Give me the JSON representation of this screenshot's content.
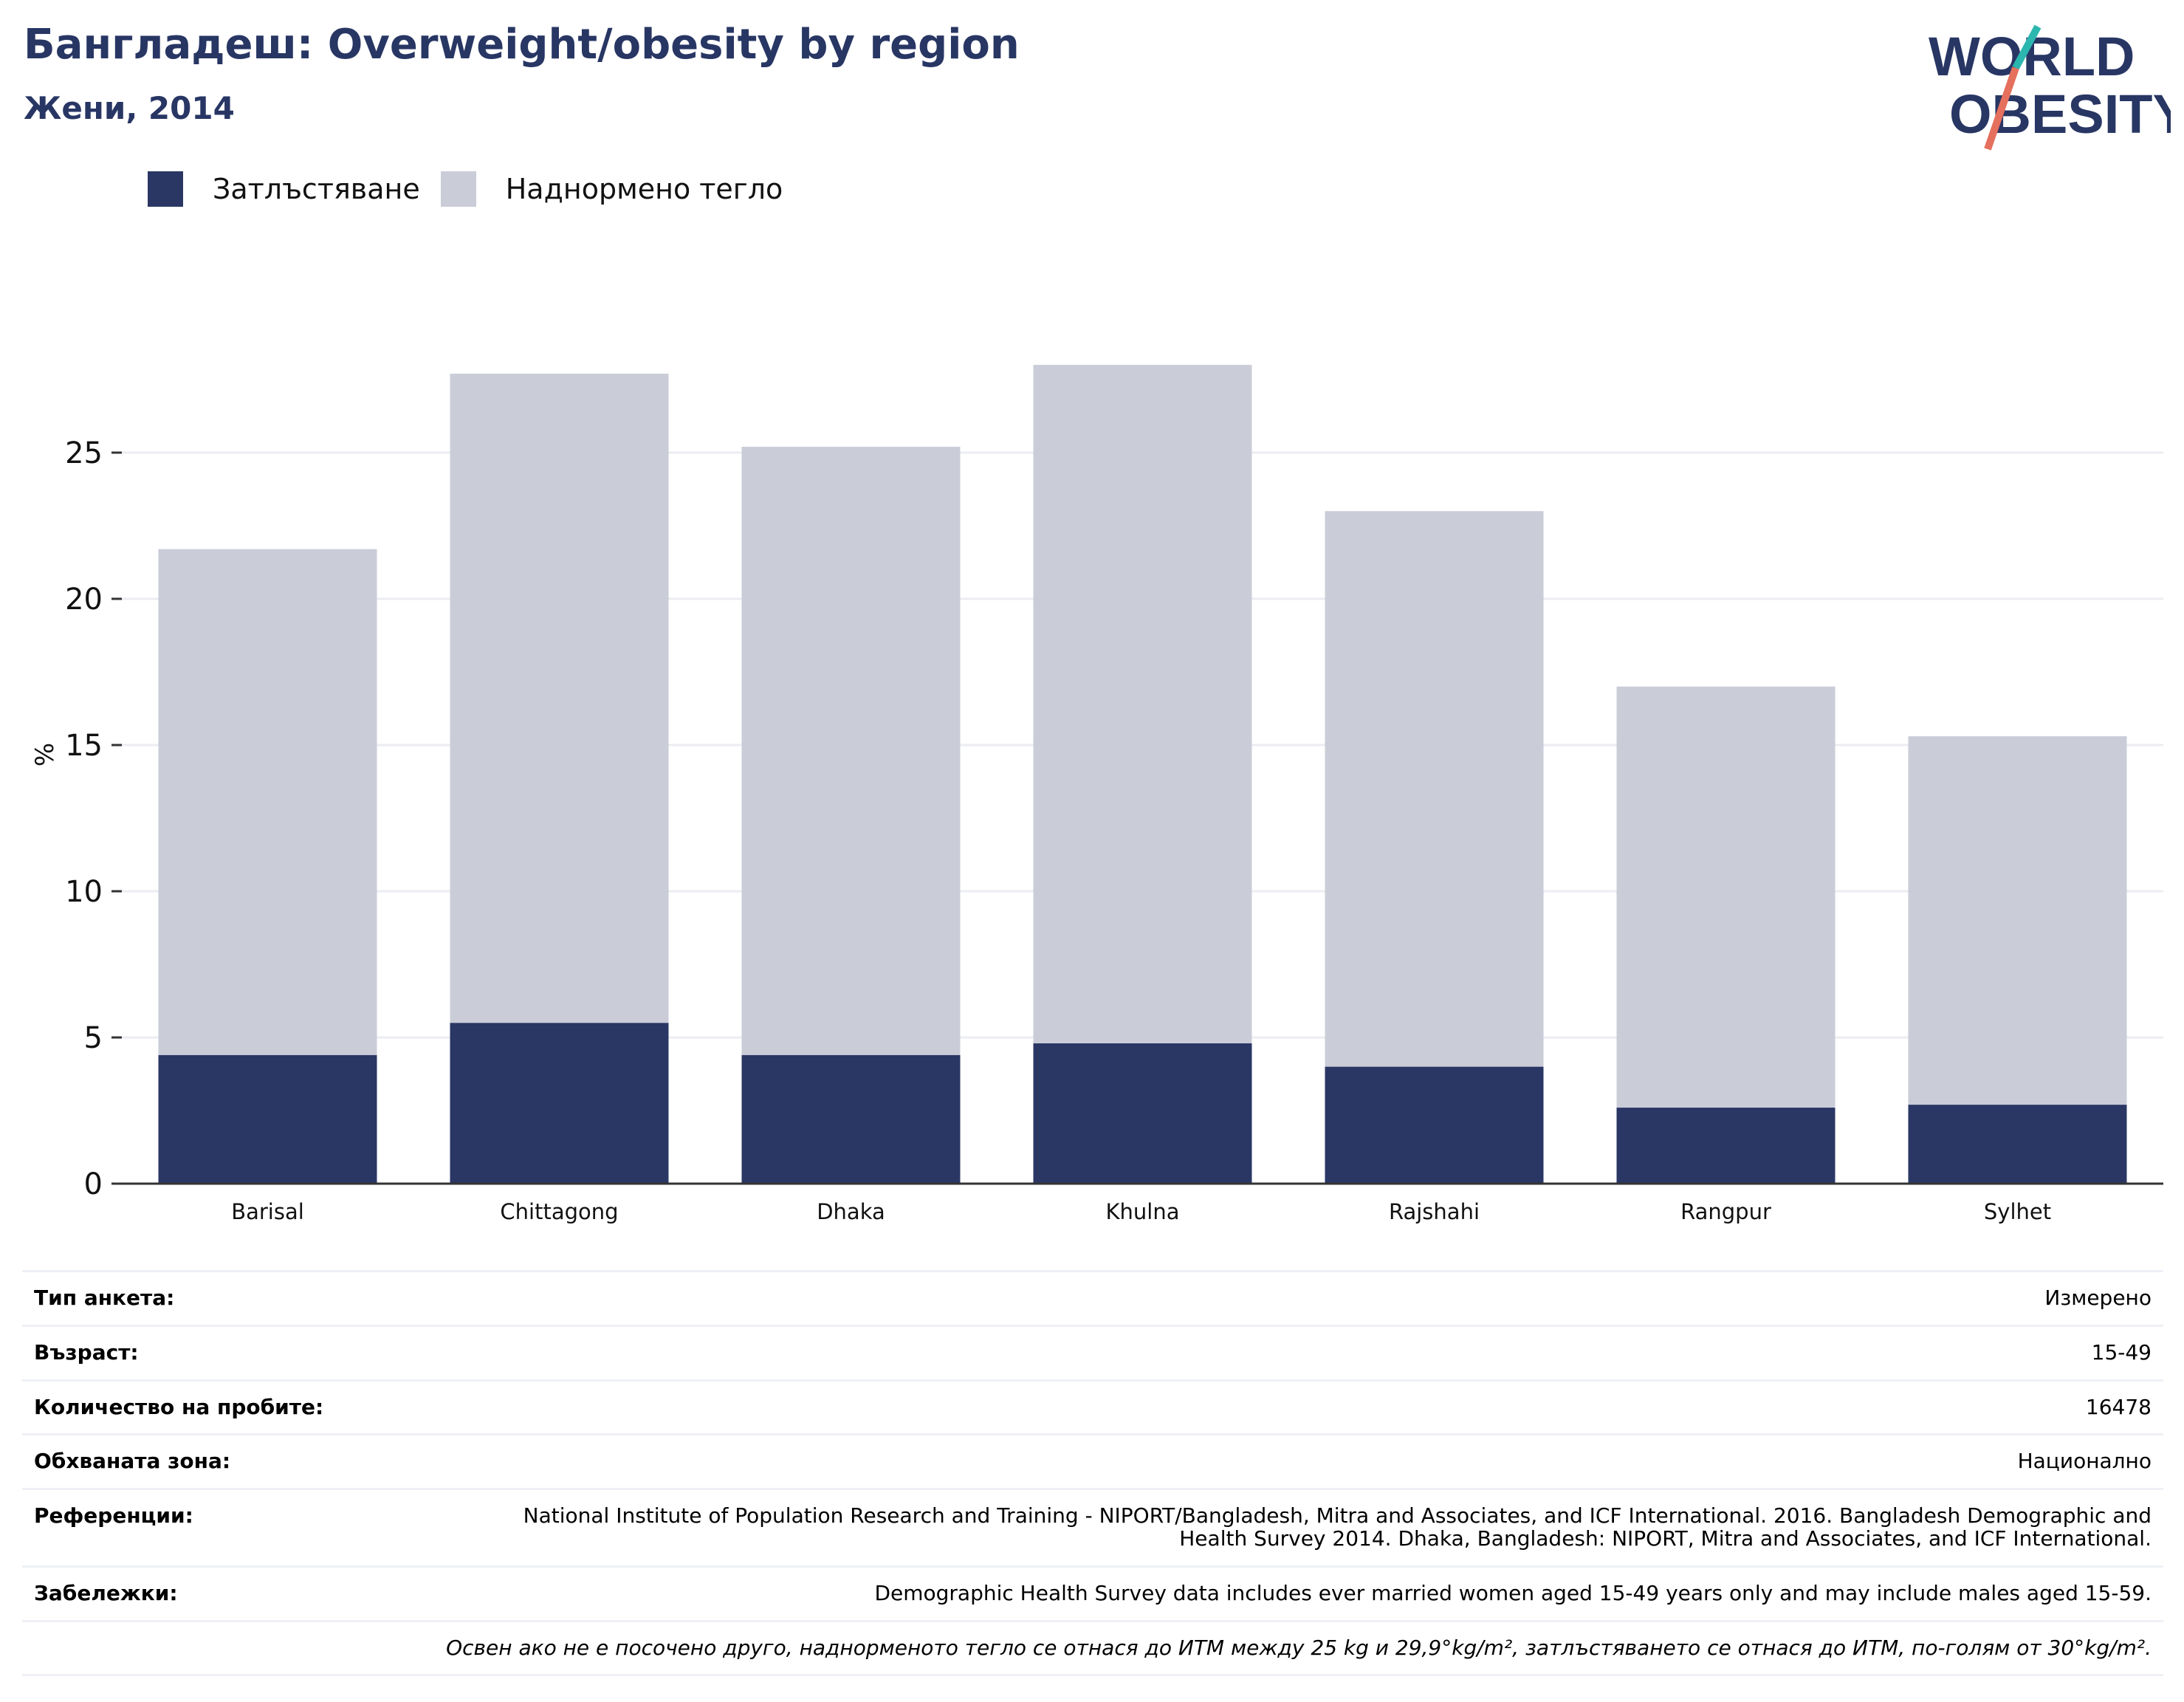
{
  "title": "Бангладеш: Overweight/obesity by region",
  "subtitle": "Жени, 2014",
  "logo": {
    "line1": "WORLD",
    "line2": "OBESITY",
    "accent_teal": "#2cb6b0",
    "accent_coral": "#e4705d",
    "text_color": "#283664"
  },
  "legend": [
    {
      "label": "Затлъстяване",
      "color": "#2a3765"
    },
    {
      "label": "Наднормено тегло",
      "color": "#caccd8"
    }
  ],
  "chart_data": {
    "type": "bar",
    "stacked": true,
    "categories": [
      "Barisal",
      "Chittagong",
      "Dhaka",
      "Khulna",
      "Rajshahi",
      "Rangpur",
      "Sylhet"
    ],
    "series": [
      {
        "name": "Затлъстяване",
        "color": "#2a3765",
        "values": [
          4.4,
          5.5,
          4.4,
          4.8,
          4.0,
          2.6,
          2.7
        ]
      },
      {
        "name": "Наднормено тегло",
        "color": "#caccd8",
        "values": [
          17.3,
          22.2,
          20.8,
          23.2,
          19.0,
          14.4,
          12.6
        ]
      }
    ],
    "totals": [
      21.7,
      27.7,
      25.2,
      28.0,
      23.0,
      17.0,
      15.3
    ],
    "ylabel": "%",
    "ylim": [
      0,
      30
    ],
    "yticks": [
      0,
      5,
      10,
      15,
      20,
      25
    ],
    "grid": true,
    "legend_position": "top-left"
  },
  "info": [
    {
      "key": "Тип анкета:",
      "value": "Измерено"
    },
    {
      "key": "Възраст:",
      "value": "15-49"
    },
    {
      "key": "Количество на пробите:",
      "value": "16478"
    },
    {
      "key": "Обхваната зона:",
      "value": "Национално"
    },
    {
      "key": "Референции:",
      "value": "National Institute of Population Research and Training - NIPORT/Bangladesh, Mitra and Associates, and ICF International. 2016. Bangladesh Demographic and Health Survey 2014. Dhaka, Bangladesh: NIPORT, Mitra and Associates, and ICF International."
    },
    {
      "key": "Забележки:",
      "value": "Demographic Health Survey data includes ever married women aged 15-49 years only and may include males aged 15-59."
    }
  ],
  "footnote": "Освен ако не е посочено друго, наднорменото тегло се отнася до ИТМ между 25 kg и 29,9°kg/m², затлъстяването се отнася до ИТМ, по-голям от 30°kg/m²."
}
